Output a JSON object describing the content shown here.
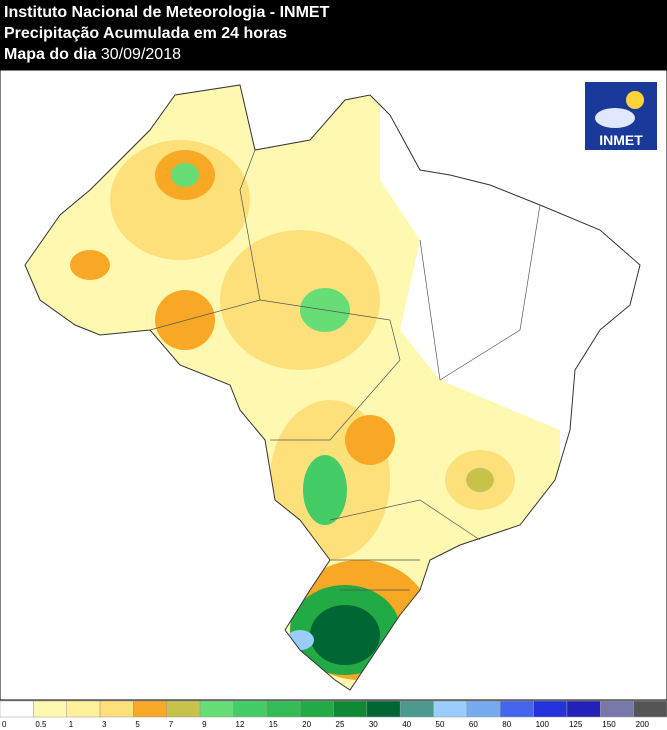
{
  "header": {
    "line1": "Instituto Nacional de Meteorologia - INMET",
    "line2": "Precipitação Acumulada em 24 horas",
    "date_label": "Mapa do dia",
    "date": "30/09/2018"
  },
  "logo": {
    "text": "INMET"
  },
  "legend": {
    "ticks": [
      0,
      0.5,
      1,
      3,
      5,
      7,
      9,
      12,
      15,
      20,
      25,
      30,
      40,
      50,
      60,
      80,
      100,
      125,
      150,
      200
    ],
    "colors": [
      "#ffffff",
      "#fff8b0",
      "#fff09a",
      "#fde07a",
      "#f9a825",
      "#c6c24a",
      "#66dd77",
      "#44cc66",
      "#33bb55",
      "#22aa44",
      "#118833",
      "#006633",
      "#4a9a90",
      "#99ccff",
      "#77aaee",
      "#4466ee",
      "#2233dd",
      "#2222bb",
      "#7777aa",
      "#555555"
    ]
  }
}
